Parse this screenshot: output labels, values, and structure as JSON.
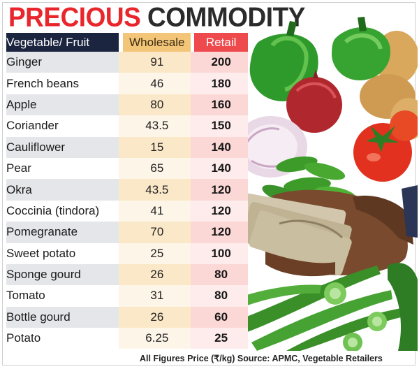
{
  "title": {
    "word1": "PRECIOUS",
    "word2": "COMMODITY"
  },
  "table": {
    "headers": {
      "name": "Vegetable/ Fruit",
      "wholesale": "Wholesale",
      "retail": "Retail"
    },
    "rows": [
      {
        "name": "Ginger",
        "wholesale": "91",
        "retail": "200"
      },
      {
        "name": "French beans",
        "wholesale": "46",
        "retail": "180"
      },
      {
        "name": "Apple",
        "wholesale": "80",
        "retail": "160"
      },
      {
        "name": "Coriander",
        "wholesale": "43.5",
        "retail": "150"
      },
      {
        "name": "Cauliflower",
        "wholesale": "15",
        "retail": "140"
      },
      {
        "name": "Pear",
        "wholesale": "65",
        "retail": "140"
      },
      {
        "name": "Okra",
        "wholesale": "43.5",
        "retail": "120"
      },
      {
        "name": "Coccinia (tindora)",
        "wholesale": "41",
        "retail": "120"
      },
      {
        "name": "Pomegranate",
        "wholesale": "70",
        "retail": "120"
      },
      {
        "name": "Sweet potato",
        "wholesale": "25",
        "retail": "100"
      },
      {
        "name": "Sponge gourd",
        "wholesale": "26",
        "retail": "80"
      },
      {
        "name": "Tomato",
        "wholesale": "31",
        "retail": "80"
      },
      {
        "name": "Bottle gourd",
        "wholesale": "26",
        "retail": "60"
      },
      {
        "name": "Potato",
        "wholesale": "6.25",
        "retail": "25"
      }
    ]
  },
  "footer": "All Figures Price (₹/kg) Source: APMC, Vegetable Retailers",
  "colors": {
    "title_red": "#e8262b",
    "header_navy": "#1c2540",
    "wholesale_header": "#f3c579",
    "retail_header": "#ee4a4d"
  },
  "illustration": {
    "name": "vegetables-and-cash-illustration",
    "items": [
      "green-capsicum-icon",
      "onion-icon",
      "tomato-icon",
      "potato-icon",
      "cucumber-icon",
      "hand-with-money-icon",
      "okra-icon"
    ]
  }
}
